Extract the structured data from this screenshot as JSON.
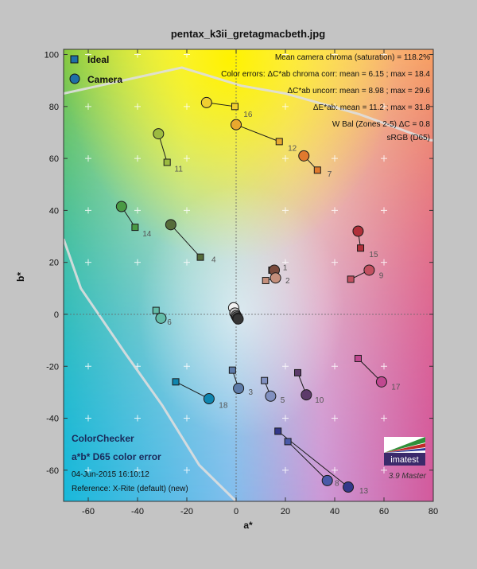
{
  "chart_data": {
    "type": "scatter",
    "title": "pentax_k3ii_gretagmacbeth.jpg",
    "xlabel": "a*",
    "ylabel": "b*",
    "xlim": [
      -70,
      80
    ],
    "ylim": [
      -72,
      102
    ],
    "xticks": [
      -60,
      -40,
      -20,
      0,
      20,
      40,
      60,
      80
    ],
    "yticks": [
      -60,
      -40,
      -20,
      0,
      20,
      40,
      60,
      80,
      100
    ],
    "grid": true,
    "legend": {
      "position": "top-left",
      "entries": [
        {
          "label": "Ideal",
          "marker": "square"
        },
        {
          "label": "Camera",
          "marker": "circle"
        }
      ]
    },
    "stats": [
      "Mean camera chroma (saturation) = 118.2%",
      "Color errors: ΔC*ab chroma corr:  mean = 6.15 ;  max = 18.4",
      "ΔC*ab uncorr:  mean = 8.98 ;  max = 29.6",
      "ΔE*ab:  mean = 11.2 ;  max = 31.8",
      "W Bal (Zones 2-5) ΔC = 0.8",
      "sRGB (D65)"
    ],
    "info": {
      "name": "ColorChecker",
      "subtitle": "a*b* D65 color error",
      "date": "04-Jun-2015 16:10:12",
      "reference": "Reference: X-Rite (default) (new)"
    },
    "logo": {
      "text": "imatest",
      "version": "3.9 Master"
    },
    "gamut_upper": [
      [
        -70,
        85
      ],
      [
        -22,
        95
      ],
      [
        2,
        88
      ],
      [
        20,
        85
      ],
      [
        50,
        77
      ],
      [
        79,
        67
      ],
      [
        80,
        67
      ]
    ],
    "gamut_lower": [
      [
        -70,
        29
      ],
      [
        -63,
        10
      ],
      [
        -45,
        -15
      ],
      [
        -30,
        -35
      ],
      [
        -15,
        -58
      ],
      [
        0,
        -72
      ]
    ],
    "patches": [
      {
        "id": "1",
        "ideal": [
          14.5,
          17.0
        ],
        "camera": [
          15.5,
          17.0
        ],
        "color": "#7a4a3c",
        "lx": 19,
        "ly": 17
      },
      {
        "id": "2",
        "ideal": [
          12.0,
          13.0
        ],
        "camera": [
          16.0,
          14.0
        ],
        "color": "#c48f7c",
        "lx": 20,
        "ly": 12
      },
      {
        "id": "3",
        "ideal": [
          -1.5,
          -21.5
        ],
        "camera": [
          1.0,
          -28.5
        ],
        "color": "#5e7ba8",
        "lx": 5,
        "ly": -31
      },
      {
        "id": "4",
        "ideal": [
          -14.5,
          22.0
        ],
        "camera": [
          -26.5,
          34.5
        ],
        "color": "#566c3a",
        "lx": -10,
        "ly": 20
      },
      {
        "id": "5",
        "ideal": [
          11.5,
          -25.5
        ],
        "camera": [
          14.0,
          -31.5
        ],
        "color": "#8190c0",
        "lx": 18,
        "ly": -34
      },
      {
        "id": "6",
        "ideal": [
          -32.5,
          1.5
        ],
        "camera": [
          -30.5,
          -1.5
        ],
        "color": "#63bca8",
        "lx": -28,
        "ly": -4
      },
      {
        "id": "7",
        "ideal": [
          33.0,
          55.5
        ],
        "camera": [
          27.5,
          61.0
        ],
        "color": "#e07a2e",
        "lx": 37,
        "ly": 53
      },
      {
        "id": "8",
        "ideal": [
          21.0,
          -49.0
        ],
        "camera": [
          37.0,
          -64.0
        ],
        "color": "#4a5aa8",
        "lx": 40,
        "ly": -66
      },
      {
        "id": "9",
        "ideal": [
          46.5,
          13.5
        ],
        "camera": [
          54.0,
          17.0
        ],
        "color": "#c25060",
        "lx": 58,
        "ly": 14
      },
      {
        "id": "10",
        "ideal": [
          25.0,
          -22.5
        ],
        "camera": [
          28.5,
          -31.0
        ],
        "color": "#5c3a6a",
        "lx": 32,
        "ly": -34
      },
      {
        "id": "11",
        "ideal": [
          -28.0,
          58.5
        ],
        "camera": [
          -31.5,
          69.5
        ],
        "color": "#9dbb40",
        "lx": -25,
        "ly": 55
      },
      {
        "id": "12",
        "ideal": [
          17.5,
          66.5
        ],
        "camera": [
          0.0,
          73.0
        ],
        "color": "#e8a82e",
        "lx": 21,
        "ly": 63
      },
      {
        "id": "13",
        "ideal": [
          17.0,
          -45.0
        ],
        "camera": [
          45.5,
          -66.5
        ],
        "color": "#34388a",
        "lx": 50,
        "ly": -69
      },
      {
        "id": "14",
        "ideal": [
          -41.0,
          33.5
        ],
        "camera": [
          -46.5,
          41.5
        ],
        "color": "#4a9a44",
        "lx": -38,
        "ly": 30
      },
      {
        "id": "15",
        "ideal": [
          50.5,
          25.5
        ],
        "camera": [
          49.5,
          32.0
        ],
        "color": "#b0303a",
        "lx": 54,
        "ly": 22
      },
      {
        "id": "16",
        "ideal": [
          -0.5,
          80.0
        ],
        "camera": [
          -12.0,
          81.5
        ],
        "color": "#f0cf30",
        "lx": 3,
        "ly": 76
      },
      {
        "id": "17",
        "ideal": [
          49.5,
          -17.0
        ],
        "camera": [
          59.0,
          -26.0
        ],
        "color": "#c04890",
        "lx": 63,
        "ly": -29
      },
      {
        "id": "18",
        "ideal": [
          -24.5,
          -26.0
        ],
        "camera": [
          -11.0,
          -32.5
        ],
        "color": "#0f86b0",
        "lx": -7,
        "ly": -36
      }
    ],
    "neutrals": [
      {
        "camera": [
          -1.0,
          2.5
        ],
        "color": "#f2f2f2"
      },
      {
        "camera": [
          -0.5,
          0.5
        ],
        "color": "#c9c9c9"
      },
      {
        "camera": [
          0.0,
          -0.5
        ],
        "color": "#a2a2a2"
      },
      {
        "camera": [
          0.3,
          -1.0
        ],
        "color": "#7a7a7a"
      },
      {
        "camera": [
          0.6,
          -1.5
        ],
        "color": "#545454"
      },
      {
        "camera": [
          0.8,
          -1.8
        ],
        "color": "#353535"
      }
    ]
  }
}
